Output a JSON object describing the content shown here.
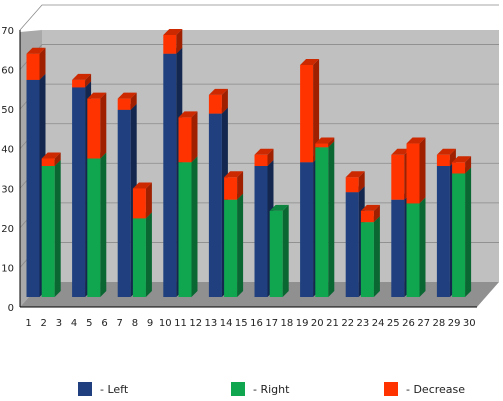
{
  "chart_data": {
    "type": "bar",
    "stacked": true,
    "three_d": true,
    "title": "",
    "xlabel": "",
    "ylabel": "",
    "ylim": [
      0,
      70
    ],
    "y_ticks": [
      0,
      10,
      20,
      30,
      40,
      50,
      60,
      70
    ],
    "grid": true,
    "legend_position": "bottom",
    "categories": [
      "1",
      "2",
      "3",
      "4",
      "5",
      "6",
      "7",
      "8",
      "9",
      "10",
      "11",
      "12",
      "13",
      "14",
      "15",
      "16",
      "17",
      "18",
      "19",
      "20",
      "21",
      "22",
      "23",
      "24",
      "25",
      "26",
      "27",
      "28",
      "29",
      "30"
    ],
    "bars": [
      {
        "x": 1,
        "side": "left",
        "base": 58,
        "decrease": 7
      },
      {
        "x": 2,
        "side": "right",
        "base": 35,
        "decrease": 2
      },
      {
        "x": 4,
        "side": "left",
        "base": 56,
        "decrease": 2
      },
      {
        "x": 5,
        "side": "right",
        "base": 37,
        "decrease": 16
      },
      {
        "x": 7,
        "side": "left",
        "base": 50,
        "decrease": 3
      },
      {
        "x": 8,
        "side": "right",
        "base": 21,
        "decrease": 8
      },
      {
        "x": 10,
        "side": "left",
        "base": 65,
        "decrease": 5
      },
      {
        "x": 11,
        "side": "right",
        "base": 36,
        "decrease": 12
      },
      {
        "x": 13,
        "side": "left",
        "base": 49,
        "decrease": 5
      },
      {
        "x": 14,
        "side": "right",
        "base": 26,
        "decrease": 6
      },
      {
        "x": 16,
        "side": "left",
        "base": 35,
        "decrease": 3
      },
      {
        "x": 17,
        "side": "right",
        "base": 23,
        "decrease": 0
      },
      {
        "x": 19,
        "side": "left",
        "base": 36,
        "decrease": 26
      },
      {
        "x": 20,
        "side": "right",
        "base": 40,
        "decrease": 1
      },
      {
        "x": 22,
        "side": "left",
        "base": 28,
        "decrease": 4
      },
      {
        "x": 23,
        "side": "right",
        "base": 20,
        "decrease": 3
      },
      {
        "x": 25,
        "side": "left",
        "base": 26,
        "decrease": 12
      },
      {
        "x": 26,
        "side": "right",
        "base": 25,
        "decrease": 16
      },
      {
        "x": 28,
        "side": "left",
        "base": 35,
        "decrease": 3
      },
      {
        "x": 29,
        "side": "right",
        "base": 33,
        "decrease": 3
      }
    ],
    "series": [
      {
        "name": "- Left",
        "color": "#1f3f7f"
      },
      {
        "name": "- Right",
        "color": "#10a650"
      },
      {
        "name": "- Decrease",
        "color": "#ff3300"
      }
    ]
  }
}
